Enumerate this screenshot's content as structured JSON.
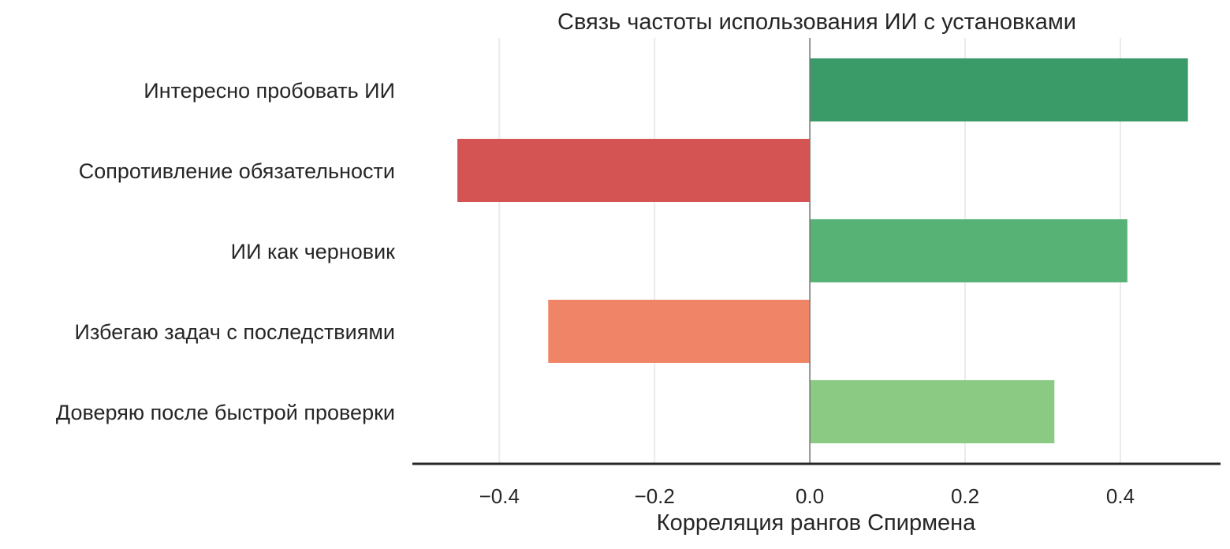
{
  "chart_data": {
    "type": "bar",
    "orientation": "horizontal",
    "title": "Связь частоты использования ИИ с установками",
    "xlabel": "Корреляция рангов Спирмена",
    "ylabel": "",
    "xlim": [
      -0.512,
      0.529
    ],
    "xticks": [
      -0.4,
      -0.2,
      0.0,
      0.2,
      0.4
    ],
    "xtick_labels": [
      "−0.4",
      "−0.2",
      "0.0",
      "0.2",
      "0.4"
    ],
    "grid": "vertical",
    "categories": [
      "Интересно пробовать ИИ",
      "Сопротивление обязательности",
      "ИИ как черновик",
      "Избегаю задач с последствиями",
      "Доверяю после быстрой проверки"
    ],
    "values": [
      0.487,
      -0.454,
      0.409,
      -0.337,
      0.315
    ],
    "colors": [
      "#3a9a68",
      "#d45454",
      "#56b275",
      "#f08467",
      "#8aca82"
    ]
  }
}
